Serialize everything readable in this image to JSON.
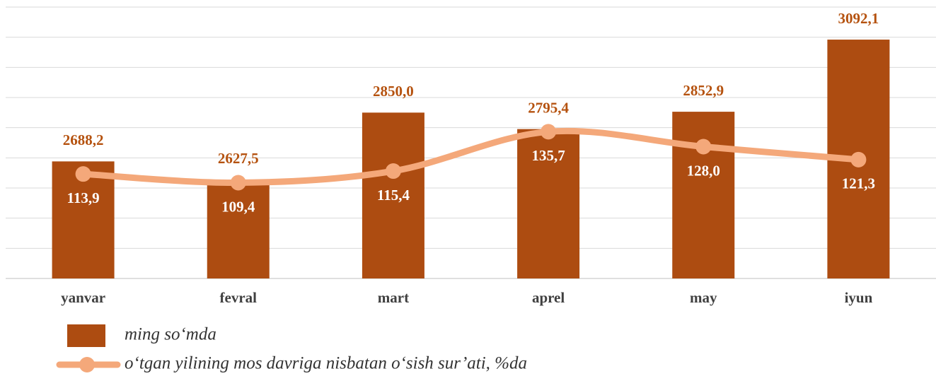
{
  "chart_data": {
    "type": "bar+line",
    "categories": [
      "yanvar",
      "fevral",
      "mart",
      "aprel",
      "may",
      "iyun"
    ],
    "series": [
      {
        "name": "ming so‘mda",
        "type": "bar",
        "color": "#ad4c11",
        "values": [
          2688.2,
          2627.5,
          2850.0,
          2795.4,
          2852.9,
          3092.1
        ],
        "value_labels": [
          "2688,2",
          "2627,5",
          "2850,0",
          "2795,4",
          "2852,9",
          "3092,1"
        ]
      },
      {
        "name": "o‘tgan yilining mos davriga nisbatan o‘sish sur’ati, %da",
        "type": "line",
        "axis": "y2",
        "color": "#f4a87a",
        "values": [
          113.9,
          109.4,
          115.4,
          135.7,
          128.0,
          121.3
        ],
        "value_labels": [
          "113,9",
          "109,4",
          "115,4",
          "135,7",
          "128,0",
          "121,3"
        ]
      }
    ],
    "ylim": [
      2300,
      3200
    ],
    "yticks": [
      2300,
      2400,
      2500,
      2600,
      2700,
      2800,
      2900,
      3000,
      3100,
      3200
    ],
    "y2lim": [
      60,
      200
    ],
    "grid": true
  }
}
